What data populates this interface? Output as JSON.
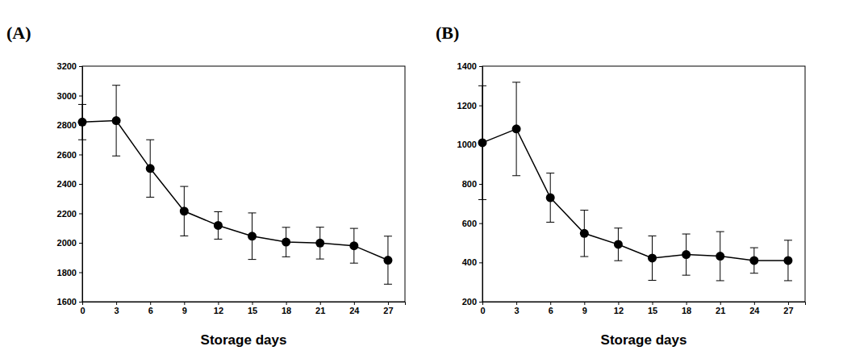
{
  "chart_data": [
    {
      "type": "line",
      "title": "(A)",
      "x_label": "Storage days",
      "x": [
        0,
        3,
        6,
        9,
        12,
        15,
        18,
        21,
        24,
        27
      ],
      "values": [
        2820,
        2830,
        2505,
        2215,
        2118,
        2045,
        2005,
        1998,
        1980,
        1882
      ],
      "errors": [
        120,
        240,
        195,
        168,
        93,
        158,
        100,
        108,
        118,
        163
      ],
      "xlim": [
        0,
        28.5
      ],
      "ylim": [
        1600,
        3200
      ],
      "xticks": [
        0,
        3,
        6,
        9,
        12,
        15,
        18,
        21,
        24,
        27
      ],
      "yticks": [
        1600,
        1800,
        2000,
        2200,
        2400,
        2600,
        2800,
        3000,
        3200
      ],
      "color": "#000000",
      "marker": "circle"
    },
    {
      "type": "line",
      "title": "(B)",
      "x_label": "Storage days",
      "x": [
        0,
        3,
        6,
        9,
        12,
        15,
        18,
        21,
        24,
        27
      ],
      "values": [
        1010,
        1080,
        730,
        548,
        492,
        422,
        440,
        432,
        410,
        410
      ],
      "errors": [
        290,
        238,
        125,
        118,
        83,
        113,
        105,
        125,
        65,
        103
      ],
      "xlim": [
        0,
        28.5
      ],
      "ylim": [
        200,
        1400
      ],
      "xticks": [
        0,
        3,
        6,
        9,
        12,
        15,
        18,
        21,
        24,
        27
      ],
      "yticks": [
        200,
        400,
        600,
        800,
        1000,
        1200,
        1400
      ],
      "color": "#000000",
      "marker": "circle"
    }
  ]
}
